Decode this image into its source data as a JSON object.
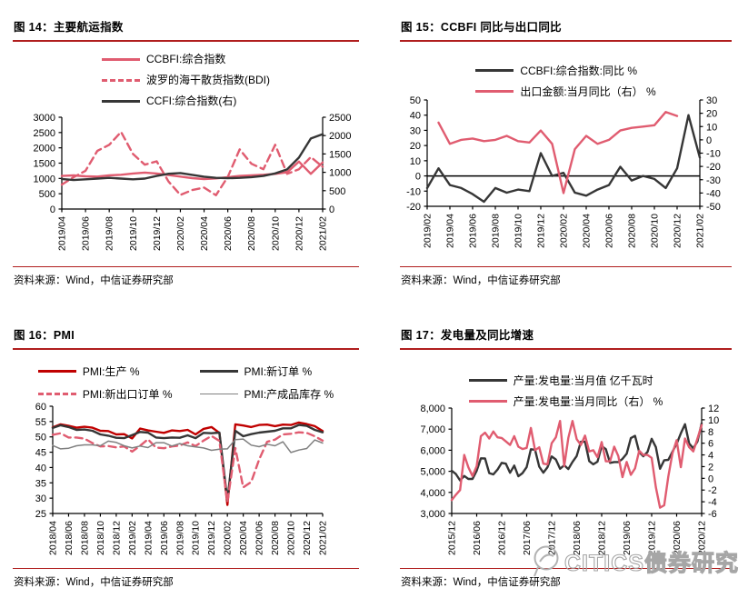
{
  "palette": {
    "rule_red": "#B01E1E",
    "line_pink": "#E05C70",
    "line_dark_red": "#C00000",
    "line_black": "#363636",
    "line_gray": "#808080",
    "watermark_gray": "#A6A6A6"
  },
  "watermark": {
    "text": "CITICS债券研究"
  },
  "chart_data": [
    {
      "id": "fig-14",
      "type": "line",
      "title": "图 14：主要航运指数",
      "source": "资料来源：Wind，中信证券研究部",
      "n_points": 23,
      "x_tick_step": 2,
      "x_tick_labels": [
        "2019/04",
        "2019/06",
        "2019/08",
        "2019/10",
        "2019/12",
        "2020/02",
        "2020/04",
        "2020/06",
        "2020/08",
        "2020/10",
        "2020/12",
        "2021/02"
      ],
      "axes": {
        "left": {
          "min": 0,
          "max": 3000,
          "tick_labels": [
            "3000",
            "2500",
            "2000",
            "1500",
            "1000",
            "500",
            "0"
          ]
        },
        "right": {
          "min": 0,
          "max": 2500,
          "tick_labels": [
            "2500",
            "2000",
            "1500",
            "1000",
            "500",
            "0"
          ]
        }
      },
      "series": [
        {
          "name": "CCBFI:综合指数",
          "axis": "left",
          "color": "#E05C70",
          "style": "solid",
          "values": [
            1080,
            1100,
            1070,
            1060,
            1100,
            1120,
            1160,
            1190,
            1160,
            1110,
            1060,
            1010,
            980,
            1000,
            1040,
            1080,
            1100,
            1120,
            1150,
            1200,
            1550,
            1150,
            1520
          ]
        },
        {
          "name": "波罗的海干散货指数(BDI)",
          "axis": "left",
          "color": "#E05C70",
          "style": "dashed",
          "values": [
            800,
            1040,
            1250,
            1900,
            2100,
            2520,
            1800,
            1450,
            1560,
            900,
            460,
            620,
            700,
            450,
            1050,
            1950,
            1480,
            1300,
            2100,
            1150,
            1300,
            1700,
            1380
          ]
        },
        {
          "name": "CCFI:综合指数(右)",
          "axis": "right",
          "color": "#363636",
          "style": "solid",
          "values": [
            820,
            790,
            810,
            830,
            850,
            830,
            810,
            830,
            900,
            960,
            980,
            930,
            880,
            850,
            840,
            850,
            870,
            900,
            970,
            1080,
            1400,
            1920,
            2040
          ]
        }
      ]
    },
    {
      "id": "fig-15",
      "type": "line",
      "title": "图 15：CCBFI 同比与出口同比",
      "source": "资料来源：Wind，中信证券研究部",
      "n_points": 25,
      "x_tick_step": 2,
      "x_tick_labels": [
        "2019/02",
        "2019/04",
        "2019/06",
        "2019/08",
        "2019/10",
        "2019/12",
        "2020/02",
        "2020/04",
        "2020/06",
        "2020/08",
        "2020/10",
        "2020/12",
        "2021/02"
      ],
      "axes": {
        "left": {
          "min": -20,
          "max": 50,
          "zeroline": true,
          "tick_labels": [
            "50",
            "40",
            "30",
            "20",
            "10",
            "0",
            "-10",
            "-20"
          ]
        },
        "right": {
          "min": -50,
          "max": 30,
          "tick_labels": [
            "30",
            "20",
            "10",
            "0",
            "-10",
            "-20",
            "-30",
            "-40",
            "-50"
          ]
        }
      },
      "series": [
        {
          "name": "CCBFI:综合指数:同比 %",
          "axis": "left",
          "color": "#363636",
          "style": "solid",
          "values": [
            -8,
            5,
            -6,
            -8,
            -12,
            -17,
            -8,
            -11,
            -9,
            -10,
            15,
            0,
            2,
            -11,
            -13,
            -9,
            -6,
            6,
            -3,
            0,
            -2,
            -8,
            5,
            40,
            12
          ]
        },
        {
          "name": "出口金额:当月同比（右） %",
          "axis": "right",
          "color": "#E05C70",
          "style": "solid",
          "values": [
            null,
            13,
            -3,
            0,
            1,
            -1,
            0,
            3,
            -1,
            -2,
            7,
            -3,
            -40,
            -7,
            3,
            -3,
            0,
            7,
            9,
            10,
            11,
            21,
            18,
            null,
            null
          ]
        }
      ]
    },
    {
      "id": "fig-16",
      "type": "line",
      "title": "图 16：PMI",
      "source": "资料来源：Wind，中信证券研究部",
      "n_points": 35,
      "x_tick_step": 2,
      "x_tick_labels": [
        "2018/04",
        "2018/06",
        "2018/08",
        "2018/10",
        "2018/12",
        "2019/02",
        "2019/04",
        "2019/06",
        "2019/08",
        "2019/10",
        "2019/12",
        "2020/02",
        "2020/04",
        "2020/06",
        "2020/08",
        "2020/10",
        "2020/12",
        "2021/02"
      ],
      "axes": {
        "left": {
          "min": 25,
          "max": 60,
          "tick_labels": [
            "60",
            "55",
            "50",
            "45",
            "40",
            "35",
            "30",
            "25"
          ]
        }
      },
      "series": [
        {
          "name": "PMI:生产 %",
          "axis": "left",
          "color": "#C00000",
          "style": "solid",
          "values": [
            53.1,
            54.1,
            53.6,
            53.0,
            53.3,
            53.0,
            52.0,
            51.9,
            50.8,
            50.9,
            49.5,
            52.7,
            52.1,
            51.7,
            51.3,
            52.1,
            51.9,
            52.3,
            50.8,
            52.6,
            53.2,
            51.3,
            27.8,
            54.1,
            53.7,
            53.2,
            53.9,
            54.0,
            53.5,
            54.0,
            53.9,
            54.7,
            54.2,
            53.5,
            51.9
          ]
        },
        {
          "name": "PMI:新订单 %",
          "axis": "left",
          "color": "#363636",
          "style": "solid",
          "values": [
            52.9,
            53.8,
            53.2,
            52.3,
            52.4,
            52.0,
            50.8,
            50.4,
            49.7,
            49.6,
            50.6,
            51.6,
            51.4,
            49.8,
            49.6,
            49.8,
            49.7,
            50.5,
            49.6,
            51.3,
            51.2,
            51.4,
            29.3,
            52.0,
            50.2,
            50.9,
            51.4,
            51.7,
            52.0,
            52.8,
            52.8,
            53.9,
            53.6,
            52.3,
            51.5
          ]
        },
        {
          "name": "PMI:新出口订单 %",
          "axis": "left",
          "color": "#E05C70",
          "style": "dashed",
          "values": [
            50.7,
            51.2,
            49.8,
            49.8,
            49.4,
            48.0,
            46.9,
            47.0,
            46.6,
            46.9,
            45.2,
            47.1,
            49.2,
            46.5,
            46.3,
            46.9,
            47.2,
            48.2,
            47.0,
            48.8,
            50.3,
            48.7,
            28.7,
            46.4,
            33.5,
            35.3,
            42.6,
            48.4,
            49.1,
            50.8,
            51.0,
            51.5,
            51.3,
            50.2,
            48.8
          ]
        },
        {
          "name": "PMI:产成品库存 %",
          "axis": "left",
          "color": "#808080",
          "style": "thin",
          "values": [
            47.2,
            46.1,
            46.3,
            47.1,
            47.4,
            47.4,
            47.1,
            48.6,
            48.2,
            47.1,
            46.4,
            47.0,
            46.5,
            48.1,
            48.1,
            47.0,
            47.8,
            47.1,
            46.7,
            46.4,
            45.6,
            46.0,
            46.1,
            49.1,
            49.3,
            47.3,
            46.8,
            47.6,
            47.1,
            48.4,
            44.9,
            45.7,
            46.2,
            49.0,
            48.0
          ]
        }
      ]
    },
    {
      "id": "fig-17",
      "type": "line",
      "title": "图 17：发电量及同比增速",
      "source": "资料来源：Wind，中信证券研究部",
      "n_points": 61,
      "x_tick_step": 6,
      "x_tick_labels": [
        "2015/12",
        "2016/06",
        "2016/12",
        "2017/06",
        "2017/12",
        "2018/06",
        "2018/12",
        "2019/06",
        "2019/12",
        "2020/06",
        "2020/12"
      ],
      "axes": {
        "left": {
          "min": 3000,
          "max": 8000,
          "tick_labels": [
            "8,000",
            "7,000",
            "6,000",
            "5,000",
            "4,000",
            "3,000"
          ]
        },
        "right": {
          "min": -6,
          "max": 12,
          "tick_labels": [
            "12",
            "10",
            "8",
            "6",
            "4",
            "2",
            "0",
            "-2",
            "-4",
            "-6"
          ]
        }
      },
      "series": [
        {
          "name": "产量:发电量:当月值 亿千瓦时",
          "axis": "left",
          "color": "#363636",
          "style": "solid",
          "values": [
            5030,
            4870,
            4570,
            4779,
            4636,
            4636,
            5032,
            5617,
            5606,
            4913,
            4854,
            5084,
            5400,
            5360,
            4930,
            5270,
            4767,
            4913,
            5203,
            6047,
            6021,
            5220,
            4934,
            5196,
            5706,
            5560,
            5120,
            5283,
            5107,
            5443,
            5723,
            6400,
            6404,
            5483,
            5330,
            5458,
            6199,
            6050,
            5400,
            5440,
            5440,
            5589,
            5834,
            6573,
            6682,
            5908,
            5714,
            5913,
            6544,
            6150,
            5120,
            5525,
            5543,
            5932,
            6304,
            6801,
            7238,
            6315,
            6094,
            6419,
            7277
          ]
        },
        {
          "name": "产量:发电量:当月同比（右） %",
          "axis": "right",
          "color": "#E05C70",
          "style": "solid",
          "values": [
            -3.7,
            -2.8,
            -2.0,
            4.0,
            1.9,
            0.4,
            2.1,
            7.2,
            7.8,
            6.8,
            8.0,
            7.0,
            6.9,
            6.3,
            5.7,
            7.2,
            5.4,
            5.0,
            5.2,
            8.6,
            4.8,
            5.3,
            2.5,
            2.4,
            6.0,
            7.0,
            9.8,
            2.1,
            6.9,
            9.8,
            6.7,
            5.7,
            7.3,
            4.6,
            4.8,
            3.6,
            6.2,
            2.9,
            2.9,
            5.4,
            3.8,
            0.2,
            2.8,
            0.6,
            1.7,
            4.7,
            4.0,
            4.0,
            3.5,
            -1.5,
            -5.0,
            -4.6,
            0.3,
            4.3,
            6.5,
            1.9,
            6.8,
            5.3,
            4.6,
            6.8,
            9.1
          ]
        }
      ]
    }
  ]
}
